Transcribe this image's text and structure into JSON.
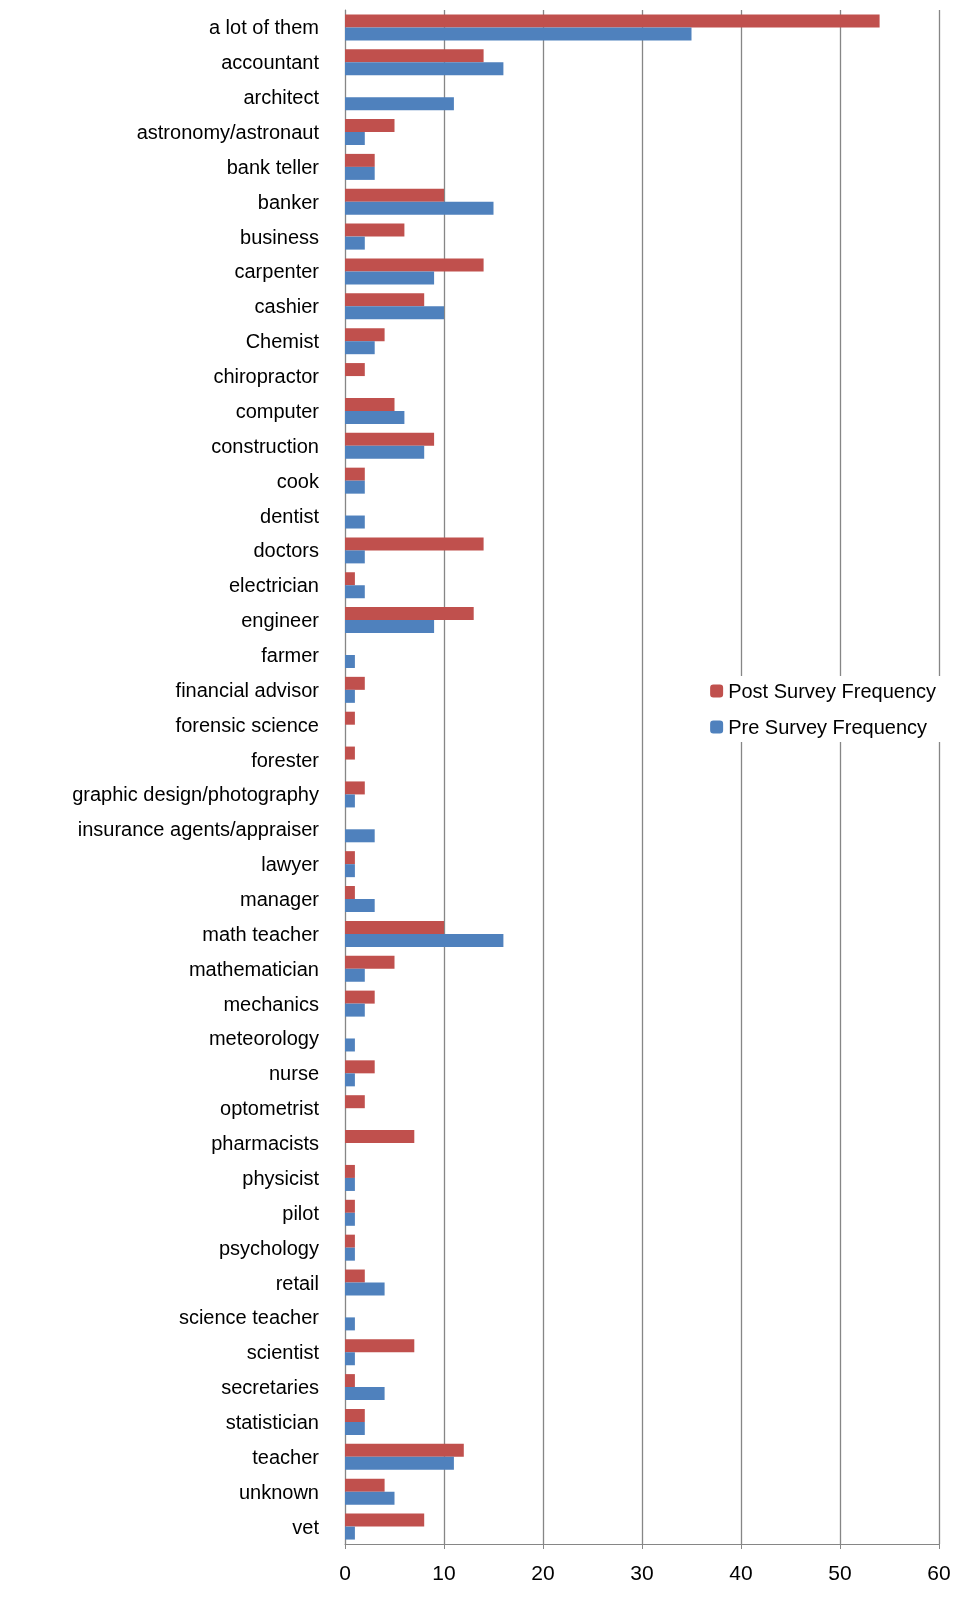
{
  "chart_data": {
    "type": "bar",
    "orientation": "horizontal",
    "categories": [
      "a lot of them",
      "accountant",
      "architect",
      "astronomy/astronaut",
      "bank teller",
      "banker",
      "business",
      "carpenter",
      "cashier",
      "Chemist",
      "chiropractor",
      "computer",
      "construction",
      "cook",
      "dentist",
      "doctors",
      "electrician",
      "engineer",
      "farmer",
      "financial advisor",
      "forensic science",
      "forester",
      "graphic design/photography",
      "insurance agents/appraiser",
      "lawyer",
      "manager",
      "math teacher",
      "mathematician",
      "mechanics",
      "meteorology",
      "nurse",
      "optometrist",
      "pharmacists",
      "physicist",
      "pilot",
      "psychology",
      "retail",
      "science teacher",
      "scientist",
      "secretaries",
      "statistician",
      "teacher",
      "unknown",
      "vet"
    ],
    "series": [
      {
        "name": "Post Survey Frequency",
        "color": "#c0504d",
        "values": [
          54,
          14,
          null,
          5,
          3,
          10,
          6,
          14,
          8,
          4,
          2,
          5,
          9,
          2,
          null,
          14,
          1,
          13,
          null,
          2,
          1,
          1,
          2,
          null,
          1,
          1,
          10,
          5,
          3,
          null,
          3,
          2,
          7,
          1,
          1,
          1,
          2,
          null,
          7,
          1,
          2,
          12,
          4,
          8
        ]
      },
      {
        "name": "Pre Survey Frequency",
        "color": "#4f81bd",
        "values": [
          35,
          16,
          11,
          2,
          3,
          15,
          2,
          9,
          10,
          3,
          null,
          6,
          8,
          2,
          2,
          2,
          2,
          9,
          1,
          1,
          null,
          null,
          1,
          3,
          1,
          3,
          16,
          2,
          2,
          1,
          1,
          null,
          null,
          1,
          1,
          1,
          4,
          1,
          1,
          4,
          2,
          11,
          5,
          1
        ]
      }
    ],
    "xlim": [
      0,
      60
    ],
    "xticks": [
      0,
      10,
      20,
      30,
      40,
      50,
      60
    ],
    "grid": "x",
    "legend": "right"
  }
}
